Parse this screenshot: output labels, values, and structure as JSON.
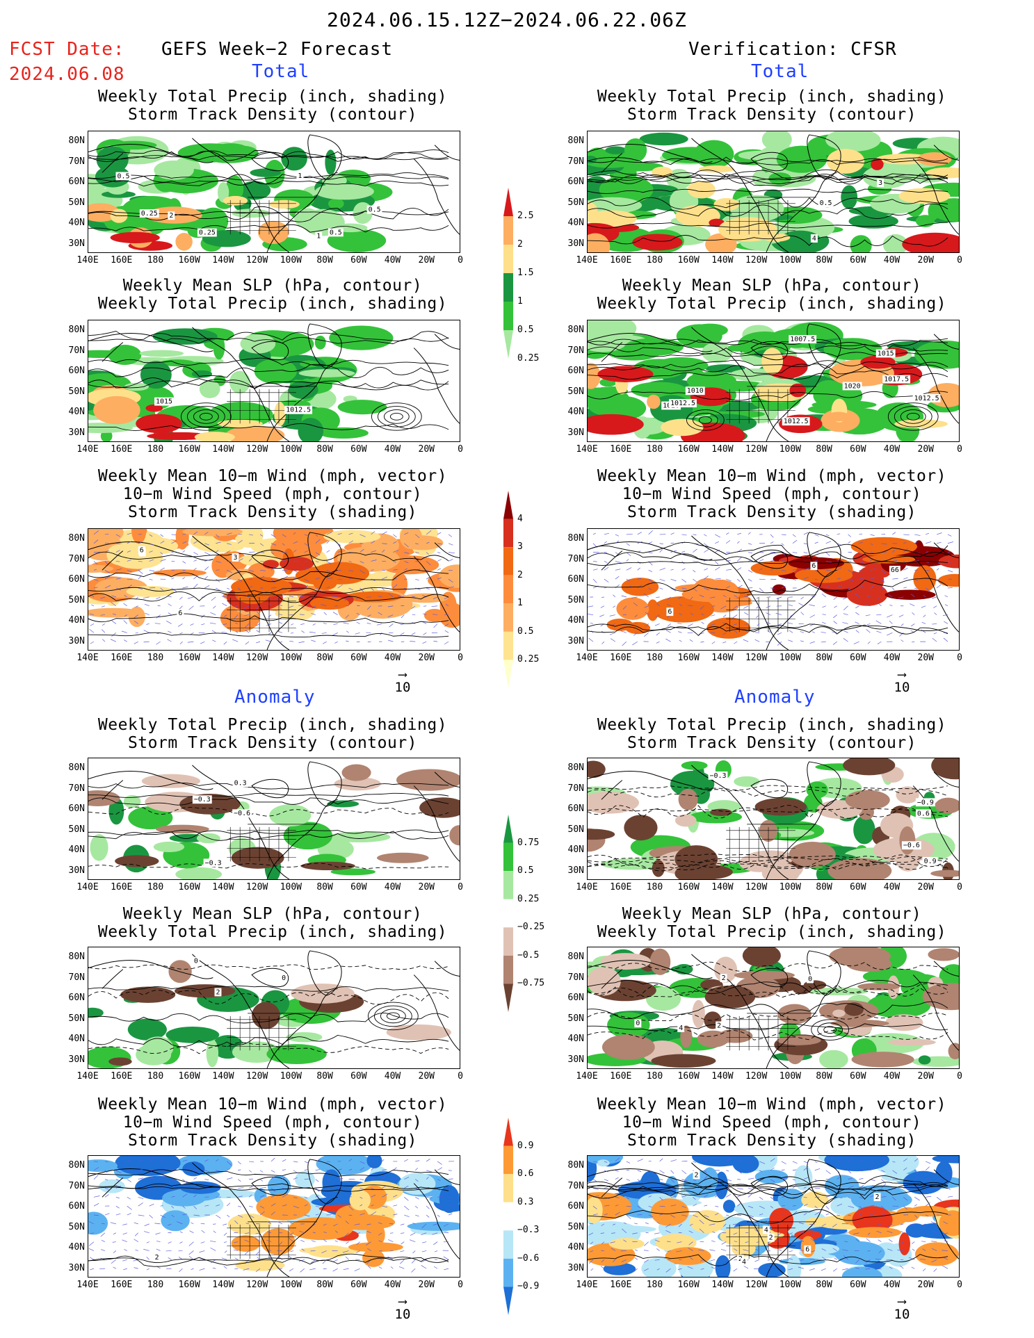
{
  "header": {
    "date_range": "2024.06.15.12Z−2024.06.22.06Z",
    "fcst_label": "FCST Date:",
    "fcst_date": "2024.06.08",
    "left_title": "GEFS Week−2 Forecast",
    "right_title": "Verification: CFSR"
  },
  "sections": {
    "total": "Total",
    "anomaly": "Anomaly"
  },
  "panel_titles": {
    "precip_storm": [
      "Weekly Total Precip (inch, shading)",
      "Storm Track Density (contour)"
    ],
    "slp_precip": [
      "Weekly Mean SLP (hPa, contour)",
      "Weekly Total Precip (inch, shading)"
    ],
    "wind_storm": [
      "Weekly Mean 10−m Wind (mph, vector)",
      "10−m Wind Speed (mph, contour)",
      "Storm Track Density (shading)"
    ]
  },
  "axes": {
    "lat_labels": [
      "80N",
      "70N",
      "60N",
      "50N",
      "40N",
      "30N"
    ],
    "lon_labels": [
      "140E",
      "160E",
      "180",
      "160W",
      "140W",
      "120W",
      "100W",
      "80W",
      "60W",
      "40W",
      "20W",
      "0"
    ]
  },
  "vector_ref": "10",
  "colorbars": {
    "precip_total": {
      "labels": [
        "2.5",
        "2",
        "1.5",
        "1",
        "0.5",
        "0.25"
      ],
      "colors": [
        "#d7191c",
        "#fdae61",
        "#fee08b",
        "#1a9641",
        "#34c23a",
        "#a6e8a0"
      ]
    },
    "storm_total": {
      "labels": [
        "4",
        "3",
        "2",
        "1",
        "0.5",
        "0.25"
      ],
      "colors": [
        "#8b0000",
        "#d7301f",
        "#f16913",
        "#fd8d3c",
        "#fdae61",
        "#fee391",
        "#ffffcc"
      ]
    },
    "precip_anom": {
      "labels": [
        "0.75",
        "0.5",
        "0.25",
        "−0.25",
        "−0.5",
        "−0.75"
      ],
      "colors": [
        "#1a9641",
        "#34c23a",
        "#a6e8a0",
        "#ffffff",
        "#e0c2b4",
        "#b08470",
        "#6b4232"
      ]
    },
    "storm_anom": {
      "labels": [
        "0.9",
        "0.6",
        "0.3",
        "−0.3",
        "−0.6",
        "−0.9"
      ],
      "colors": [
        "#e8351c",
        "#fd9a36",
        "#fee08b",
        "#ffffff",
        "#b7e6f7",
        "#5cb2f0",
        "#1e6fd6"
      ]
    }
  },
  "contour_labels": {
    "l1": [
      "0.5",
      "0.25",
      "0.25",
      "1",
      "0.5",
      "2",
      "0.5",
      "1"
    ],
    "r1": [
      "4",
      "3",
      "0.5"
    ],
    "l2": [
      "1015",
      "1012.5"
    ],
    "r2": [
      "1010",
      "1012.5",
      "1020",
      "1015",
      "1007.5",
      "1012.5",
      "1017.5",
      "1020",
      "1012.5"
    ],
    "l3": [
      "3",
      "6",
      "6",
      "3"
    ],
    "r3": [
      "6",
      "66",
      "6"
    ],
    "l4": [
      "−0.3",
      "−0.6",
      "−0.3",
      "0.3"
    ],
    "r4": [
      "−0.9",
      "−0.6",
      "0.6",
      "−0.3",
      "0.9"
    ],
    "l5": [
      "0",
      "2",
      "0"
    ],
    "r5": [
      "0",
      "2",
      "4",
      "0",
      "2"
    ],
    "l6": [
      "2"
    ],
    "r6": [
      "2",
      "2",
      "4",
      "6",
      "4",
      "2",
      "2"
    ]
  }
}
